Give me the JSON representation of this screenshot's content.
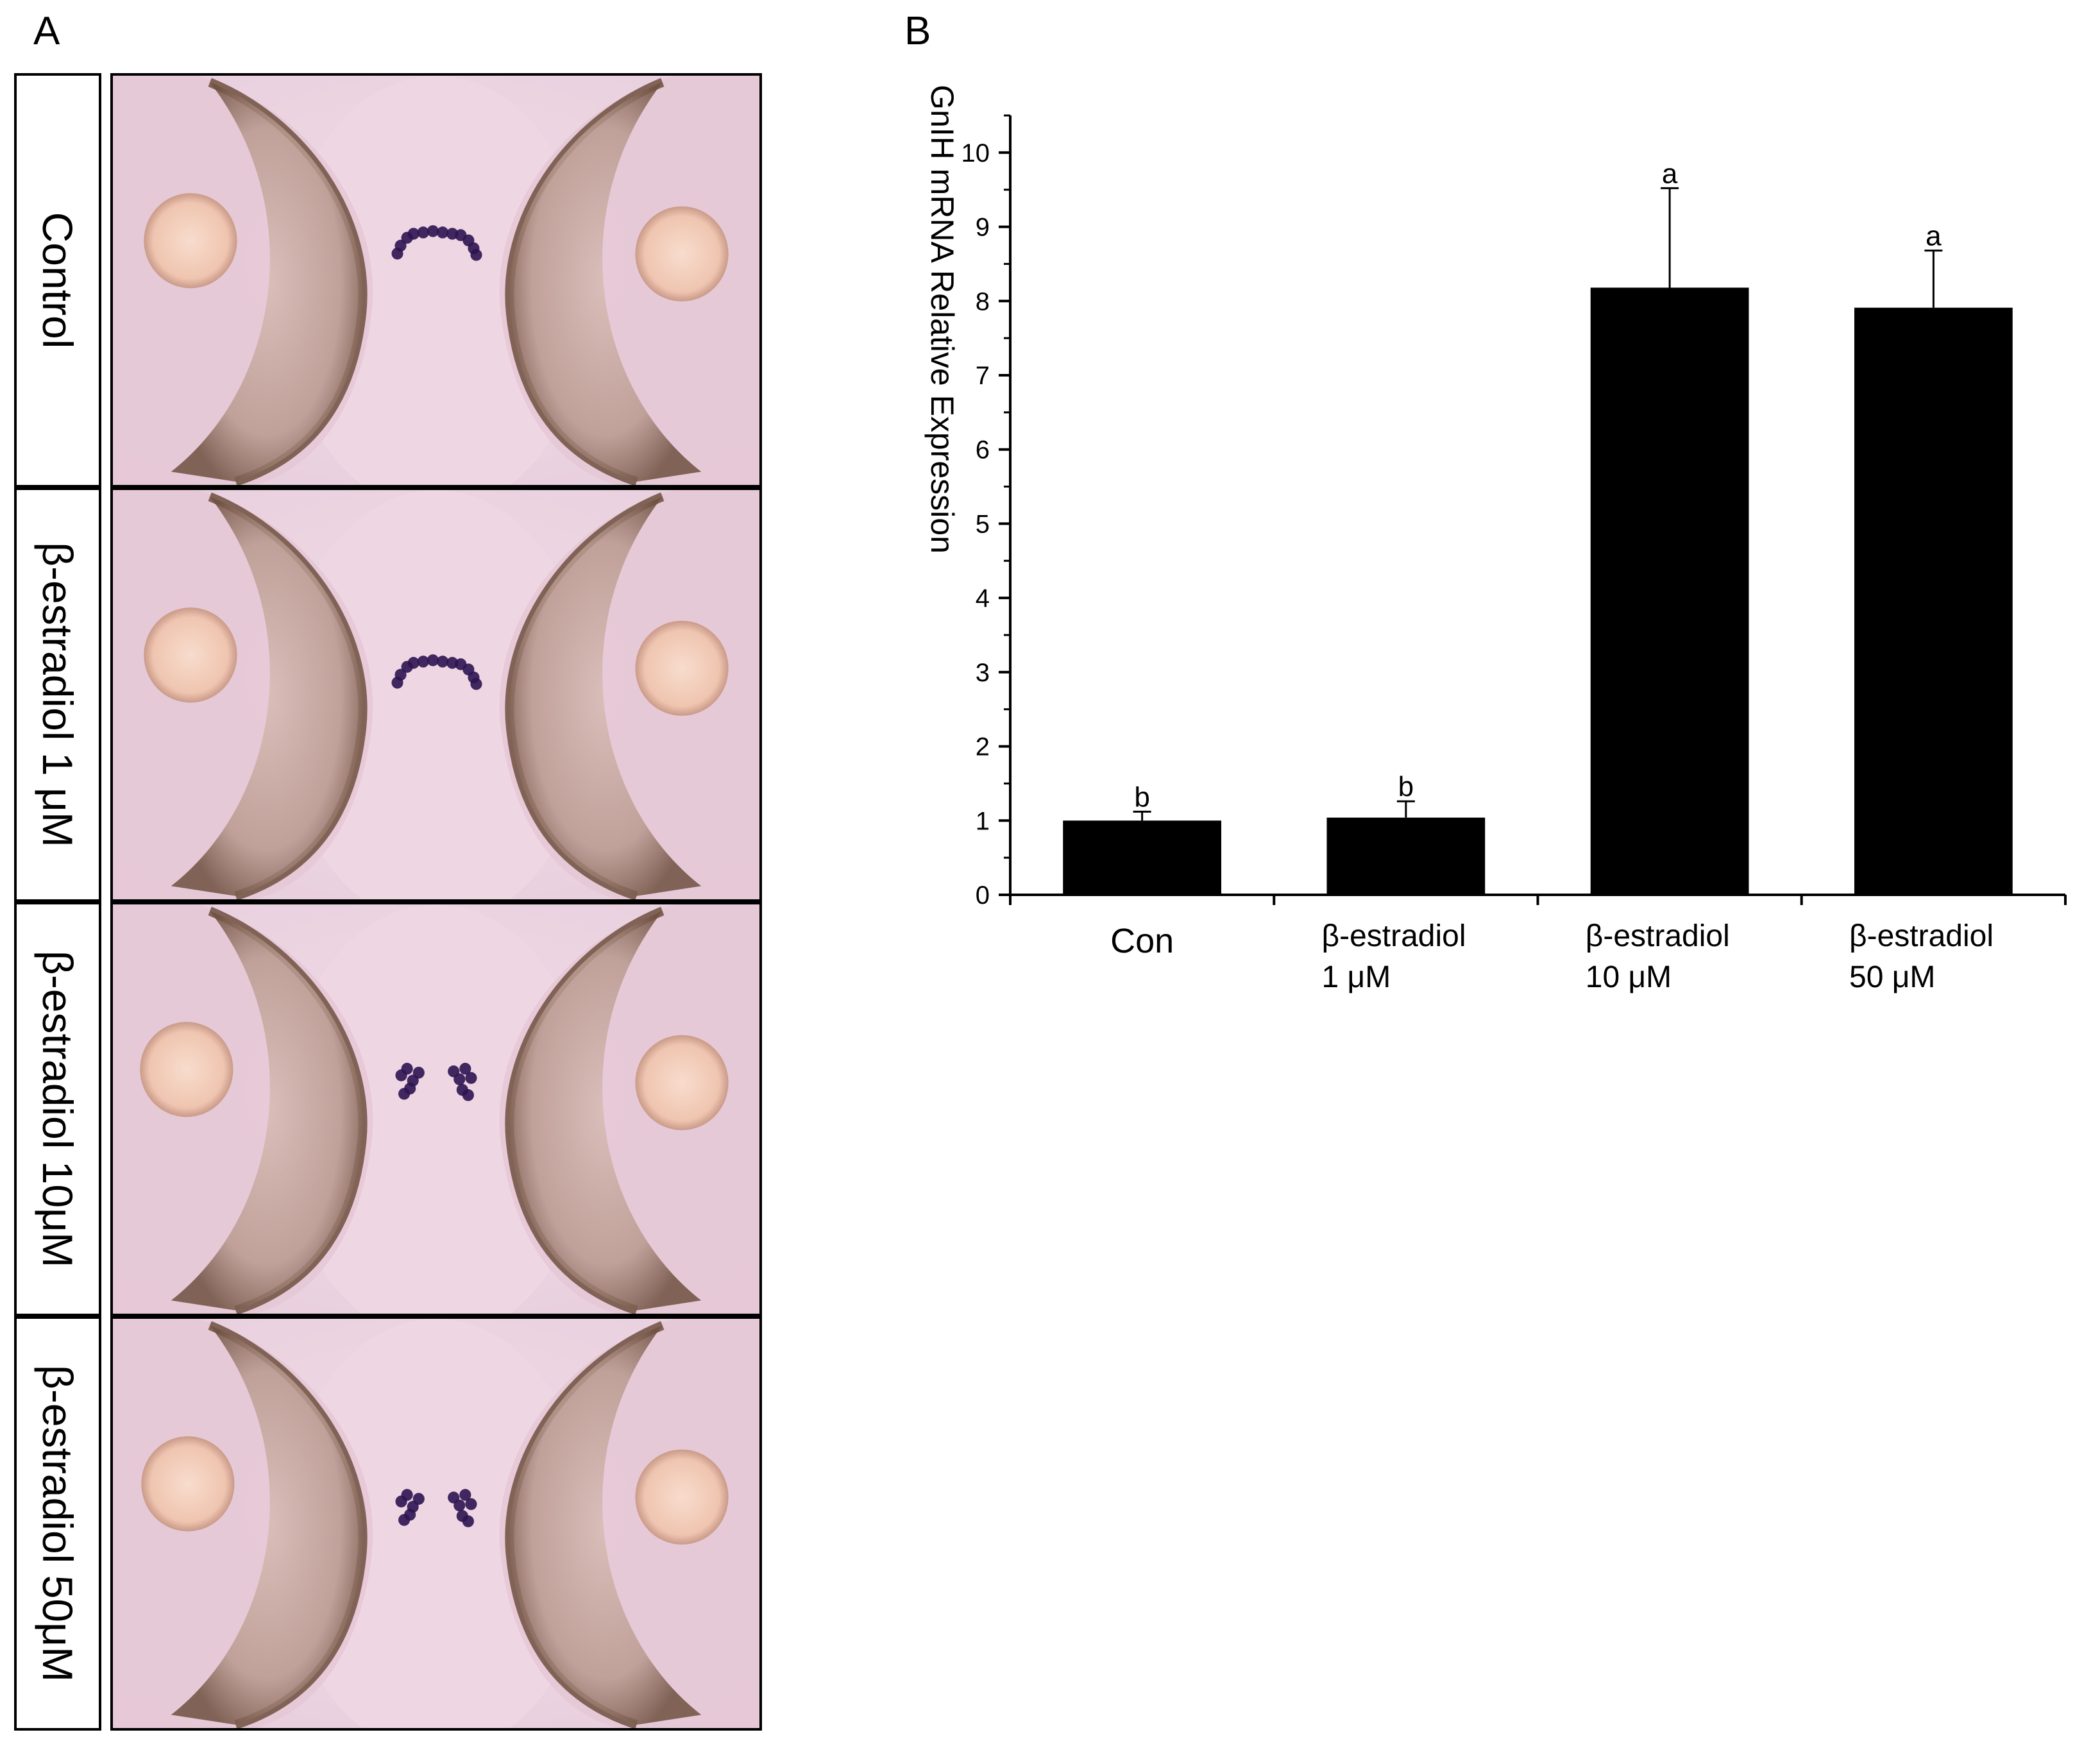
{
  "panels": {
    "a": {
      "letter": "A"
    },
    "b": {
      "letter": "B"
    }
  },
  "micrographs": [
    {
      "label": "Control"
    },
    {
      "label": "β-estradiol 1 μM"
    },
    {
      "label": "β-estradiol 10μM"
    },
    {
      "label": "β-estradiol 50μM"
    }
  ],
  "chart_data": {
    "type": "bar",
    "title": "",
    "xlabel": "",
    "ylabel": "GnIH mRNA Relative Expression",
    "ylim": [
      0,
      10.5
    ],
    "yticks": [
      "0",
      "1",
      "2",
      "3",
      "4",
      "5",
      "6",
      "7",
      "8",
      "9",
      "10"
    ],
    "categories": [
      [
        "Con"
      ],
      [
        "β-estradiol",
        "1 μM"
      ],
      [
        "β-estradiol",
        "10 μM"
      ],
      [
        "β-estradiol",
        "50 μM"
      ]
    ],
    "values": [
      1.0,
      1.04,
      8.18,
      7.91
    ],
    "errors": [
      0.12,
      0.22,
      1.34,
      0.77
    ],
    "significance": [
      "b",
      "b",
      "a",
      "a"
    ],
    "bar_color": "#000000",
    "grid": false,
    "legend": "none"
  },
  "colors": {
    "tissue": "#ecd2e0",
    "eye_shell": "#b59085",
    "lens": "#f2c9b6",
    "stain": "#2e1450"
  }
}
